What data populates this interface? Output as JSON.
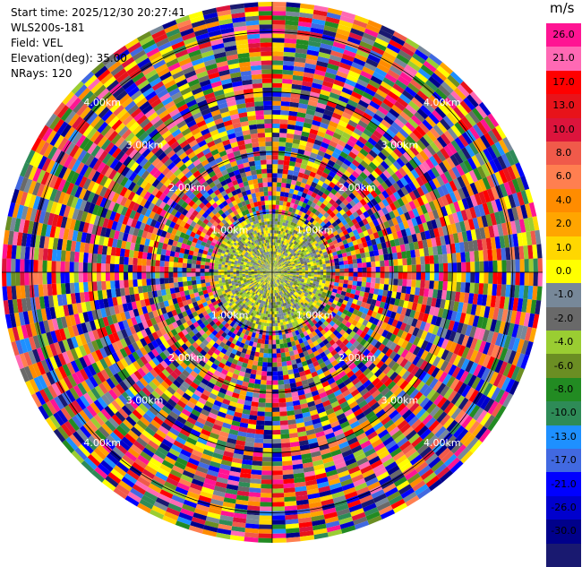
{
  "header": {
    "start_time": "Start time: 2025/12/30 20:27:41",
    "instrument": "WLS200s-181",
    "field": "Field: VEL",
    "elevation": "Elevation(deg): 35.00",
    "nrays": "NRays: 120"
  },
  "colorbar": {
    "unit": "m/s",
    "colors": [
      "#ff1493",
      "#ff69b4",
      "#ff0000",
      "#e8131a",
      "#dc143c",
      "#f05a4a",
      "#ff7f50",
      "#ff8c00",
      "#ffa500",
      "#ffd700",
      "#ffff00",
      "#778899",
      "#696969",
      "#9acd32",
      "#6b8e23",
      "#228b22",
      "#2e8b57",
      "#1e90ff",
      "#4169e1",
      "#0000ff",
      "#0000cd",
      "#00008b",
      "#191970"
    ],
    "ticks": [
      "26.0",
      "21.0",
      "17.0",
      "13.0",
      "10.0",
      "8.0",
      "6.0",
      "4.0",
      "2.0",
      "1.0",
      "0.0",
      "-1.0",
      "-2.0",
      "-4.0",
      "-6.0",
      "-8.0",
      "-10.0",
      "-13.0",
      "-17.0",
      "-21.0",
      "-26.0",
      "-30.0"
    ]
  },
  "chart_data": {
    "type": "heatmap",
    "field": "VEL",
    "unit": "m/s",
    "nrays": 120,
    "elevation_deg": 35.0,
    "color_range": [
      -30,
      26
    ],
    "range_rings_km": [
      1.0,
      2.0,
      3.0,
      4.0
    ],
    "ring_labels": [
      "1.00km",
      "2.00km",
      "3.00km",
      "4.00km"
    ],
    "max_range_km": 4.5
  }
}
